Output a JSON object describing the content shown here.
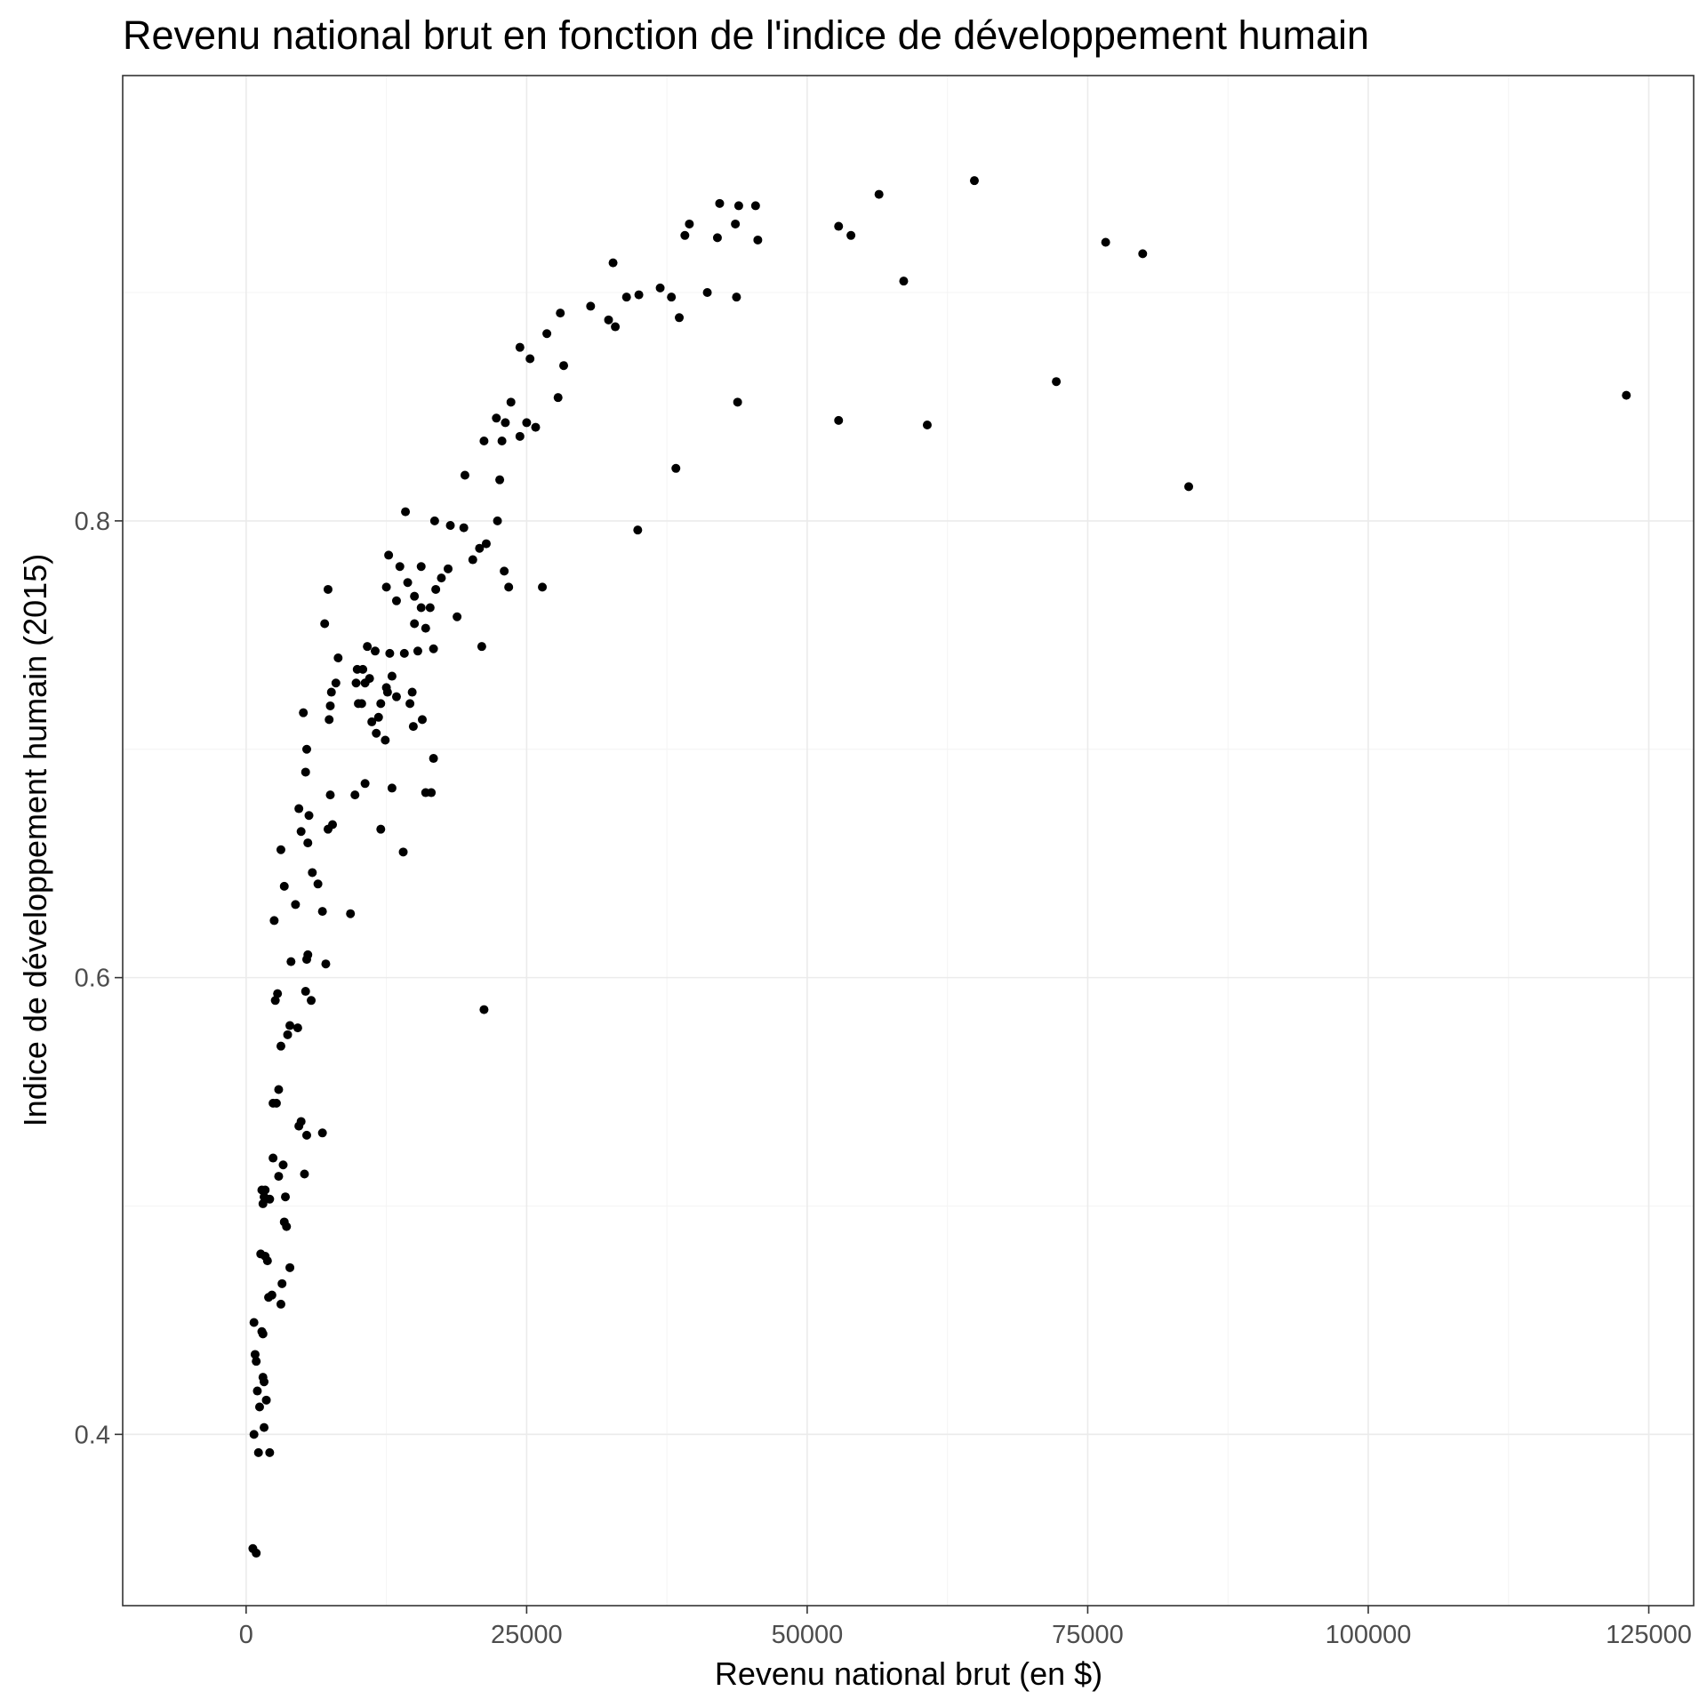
{
  "chart_data": {
    "type": "scatter",
    "title": "Revenu national brut en fonction de l'indice de développement humain",
    "xlabel": "Revenu national brut (en $)",
    "ylabel": "Indice de développement humain (2015)",
    "xlim": [
      -11000,
      129000
    ],
    "ylim": [
      0.325,
      0.995
    ],
    "xticks": [
      0,
      25000,
      50000,
      75000,
      100000,
      125000
    ],
    "xtick_labels": [
      "0",
      "25000",
      "50000",
      "75000",
      "100000",
      "125000"
    ],
    "yticks": [
      0.4,
      0.6,
      0.8
    ],
    "ytick_labels": [
      "0.4",
      "0.6",
      "0.8"
    ],
    "grid": true,
    "legend": "none",
    "point_color": "#000000",
    "points": [
      [
        600,
        0.35
      ],
      [
        900,
        0.348
      ],
      [
        700,
        0.449
      ],
      [
        800,
        0.435
      ],
      [
        900,
        0.432
      ],
      [
        1400,
        0.445
      ],
      [
        1500,
        0.444
      ],
      [
        1000,
        0.419
      ],
      [
        1200,
        0.412
      ],
      [
        1500,
        0.425
      ],
      [
        1600,
        0.423
      ],
      [
        1800,
        0.415
      ],
      [
        700,
        0.4
      ],
      [
        1600,
        0.403
      ],
      [
        1100,
        0.392
      ],
      [
        2100,
        0.392
      ],
      [
        1300,
        0.479
      ],
      [
        1700,
        0.478
      ],
      [
        1900,
        0.476
      ],
      [
        2000,
        0.46
      ],
      [
        2300,
        0.461
      ],
      [
        3100,
        0.457
      ],
      [
        3200,
        0.466
      ],
      [
        3600,
        0.491
      ],
      [
        3900,
        0.473
      ],
      [
        1400,
        0.507
      ],
      [
        1500,
        0.501
      ],
      [
        1600,
        0.504
      ],
      [
        1700,
        0.507
      ],
      [
        2100,
        0.503
      ],
      [
        2900,
        0.513
      ],
      [
        3500,
        0.504
      ],
      [
        2400,
        0.521
      ],
      [
        3300,
        0.518
      ],
      [
        3400,
        0.493
      ],
      [
        4700,
        0.535
      ],
      [
        4900,
        0.537
      ],
      [
        5200,
        0.514
      ],
      [
        5400,
        0.531
      ],
      [
        6800,
        0.532
      ],
      [
        2400,
        0.545
      ],
      [
        2700,
        0.545
      ],
      [
        2900,
        0.551
      ],
      [
        3100,
        0.57
      ],
      [
        3700,
        0.575
      ],
      [
        3900,
        0.579
      ],
      [
        4600,
        0.578
      ],
      [
        2600,
        0.59
      ],
      [
        2800,
        0.593
      ],
      [
        5300,
        0.594
      ],
      [
        5800,
        0.59
      ],
      [
        4000,
        0.607
      ],
      [
        5400,
        0.608
      ],
      [
        5500,
        0.61
      ],
      [
        7100,
        0.606
      ],
      [
        2500,
        0.625
      ],
      [
        4400,
        0.632
      ],
      [
        9300,
        0.628
      ],
      [
        6400,
        0.641
      ],
      [
        6800,
        0.629
      ],
      [
        3400,
        0.64
      ],
      [
        5900,
        0.646
      ],
      [
        3100,
        0.656
      ],
      [
        5500,
        0.659
      ],
      [
        4900,
        0.664
      ],
      [
        5600,
        0.671
      ],
      [
        4700,
        0.674
      ],
      [
        7300,
        0.665
      ],
      [
        7700,
        0.667
      ],
      [
        5300,
        0.69
      ],
      [
        5400,
        0.7
      ],
      [
        9700,
        0.68
      ],
      [
        7500,
        0.68
      ],
      [
        10600,
        0.685
      ],
      [
        13000,
        0.683
      ],
      [
        16000,
        0.681
      ],
      [
        16500,
        0.681
      ],
      [
        16700,
        0.696
      ],
      [
        12000,
        0.665
      ],
      [
        14000,
        0.655
      ],
      [
        5100,
        0.716
      ],
      [
        7400,
        0.713
      ],
      [
        7500,
        0.719
      ],
      [
        7600,
        0.725
      ],
      [
        8000,
        0.729
      ],
      [
        9800,
        0.729
      ],
      [
        10000,
        0.72
      ],
      [
        10300,
        0.72
      ],
      [
        10600,
        0.729
      ],
      [
        11000,
        0.731
      ],
      [
        11200,
        0.712
      ],
      [
        11600,
        0.707
      ],
      [
        11800,
        0.714
      ],
      [
        12000,
        0.72
      ],
      [
        12400,
        0.704
      ],
      [
        12600,
        0.725
      ],
      [
        13000,
        0.732
      ],
      [
        13400,
        0.723
      ],
      [
        14600,
        0.72
      ],
      [
        14900,
        0.71
      ],
      [
        15700,
        0.713
      ],
      [
        7000,
        0.755
      ],
      [
        7300,
        0.77
      ],
      [
        8200,
        0.74
      ],
      [
        9900,
        0.735
      ],
      [
        10400,
        0.735
      ],
      [
        10800,
        0.745
      ],
      [
        11500,
        0.743
      ],
      [
        12500,
        0.727
      ],
      [
        12800,
        0.742
      ],
      [
        14100,
        0.742
      ],
      [
        14800,
        0.725
      ],
      [
        15300,
        0.743
      ],
      [
        15600,
        0.762
      ],
      [
        16000,
        0.753
      ],
      [
        16400,
        0.762
      ],
      [
        16700,
        0.744
      ],
      [
        16900,
        0.77
      ],
      [
        17400,
        0.775
      ],
      [
        18000,
        0.779
      ],
      [
        18800,
        0.758
      ],
      [
        20200,
        0.783
      ],
      [
        20800,
        0.788
      ],
      [
        21000,
        0.745
      ],
      [
        21400,
        0.79
      ],
      [
        22400,
        0.8
      ],
      [
        23000,
        0.778
      ],
      [
        23400,
        0.771
      ],
      [
        16800,
        0.8
      ],
      [
        18200,
        0.798
      ],
      [
        19400,
        0.797
      ],
      [
        21200,
        0.586
      ],
      [
        24400,
        0.837
      ],
      [
        25000,
        0.843
      ],
      [
        25800,
        0.841
      ],
      [
        26400,
        0.771
      ],
      [
        27800,
        0.854
      ],
      [
        28300,
        0.868
      ],
      [
        22800,
        0.835
      ],
      [
        22600,
        0.818
      ],
      [
        23100,
        0.843
      ],
      [
        23600,
        0.852
      ],
      [
        21200,
        0.835
      ],
      [
        22300,
        0.845
      ],
      [
        19500,
        0.82
      ],
      [
        12700,
        0.785
      ],
      [
        13700,
        0.78
      ],
      [
        14400,
        0.773
      ],
      [
        15000,
        0.755
      ],
      [
        13400,
        0.765
      ],
      [
        15600,
        0.78
      ],
      [
        15000,
        0.767
      ],
      [
        14200,
        0.804
      ],
      [
        12500,
        0.771
      ],
      [
        34900,
        0.796
      ],
      [
        38300,
        0.823
      ],
      [
        43800,
        0.852
      ],
      [
        52800,
        0.844
      ],
      [
        60700,
        0.842
      ],
      [
        72200,
        0.861
      ],
      [
        84000,
        0.815
      ],
      [
        123000,
        0.855
      ],
      [
        24400,
        0.876
      ],
      [
        25300,
        0.871
      ],
      [
        26800,
        0.882
      ],
      [
        28000,
        0.891
      ],
      [
        30700,
        0.894
      ],
      [
        32300,
        0.888
      ],
      [
        32900,
        0.885
      ],
      [
        33900,
        0.898
      ],
      [
        35000,
        0.899
      ],
      [
        36900,
        0.902
      ],
      [
        37900,
        0.898
      ],
      [
        38600,
        0.889
      ],
      [
        41100,
        0.9
      ],
      [
        43700,
        0.898
      ],
      [
        32700,
        0.913
      ],
      [
        39100,
        0.925
      ],
      [
        39500,
        0.93
      ],
      [
        42000,
        0.924
      ],
      [
        42200,
        0.939
      ],
      [
        43600,
        0.93
      ],
      [
        43900,
        0.938
      ],
      [
        45400,
        0.938
      ],
      [
        45600,
        0.923
      ],
      [
        52800,
        0.929
      ],
      [
        53900,
        0.925
      ],
      [
        56400,
        0.943
      ],
      [
        58600,
        0.905
      ],
      [
        64900,
        0.949
      ],
      [
        76600,
        0.922
      ],
      [
        79900,
        0.917
      ]
    ]
  }
}
